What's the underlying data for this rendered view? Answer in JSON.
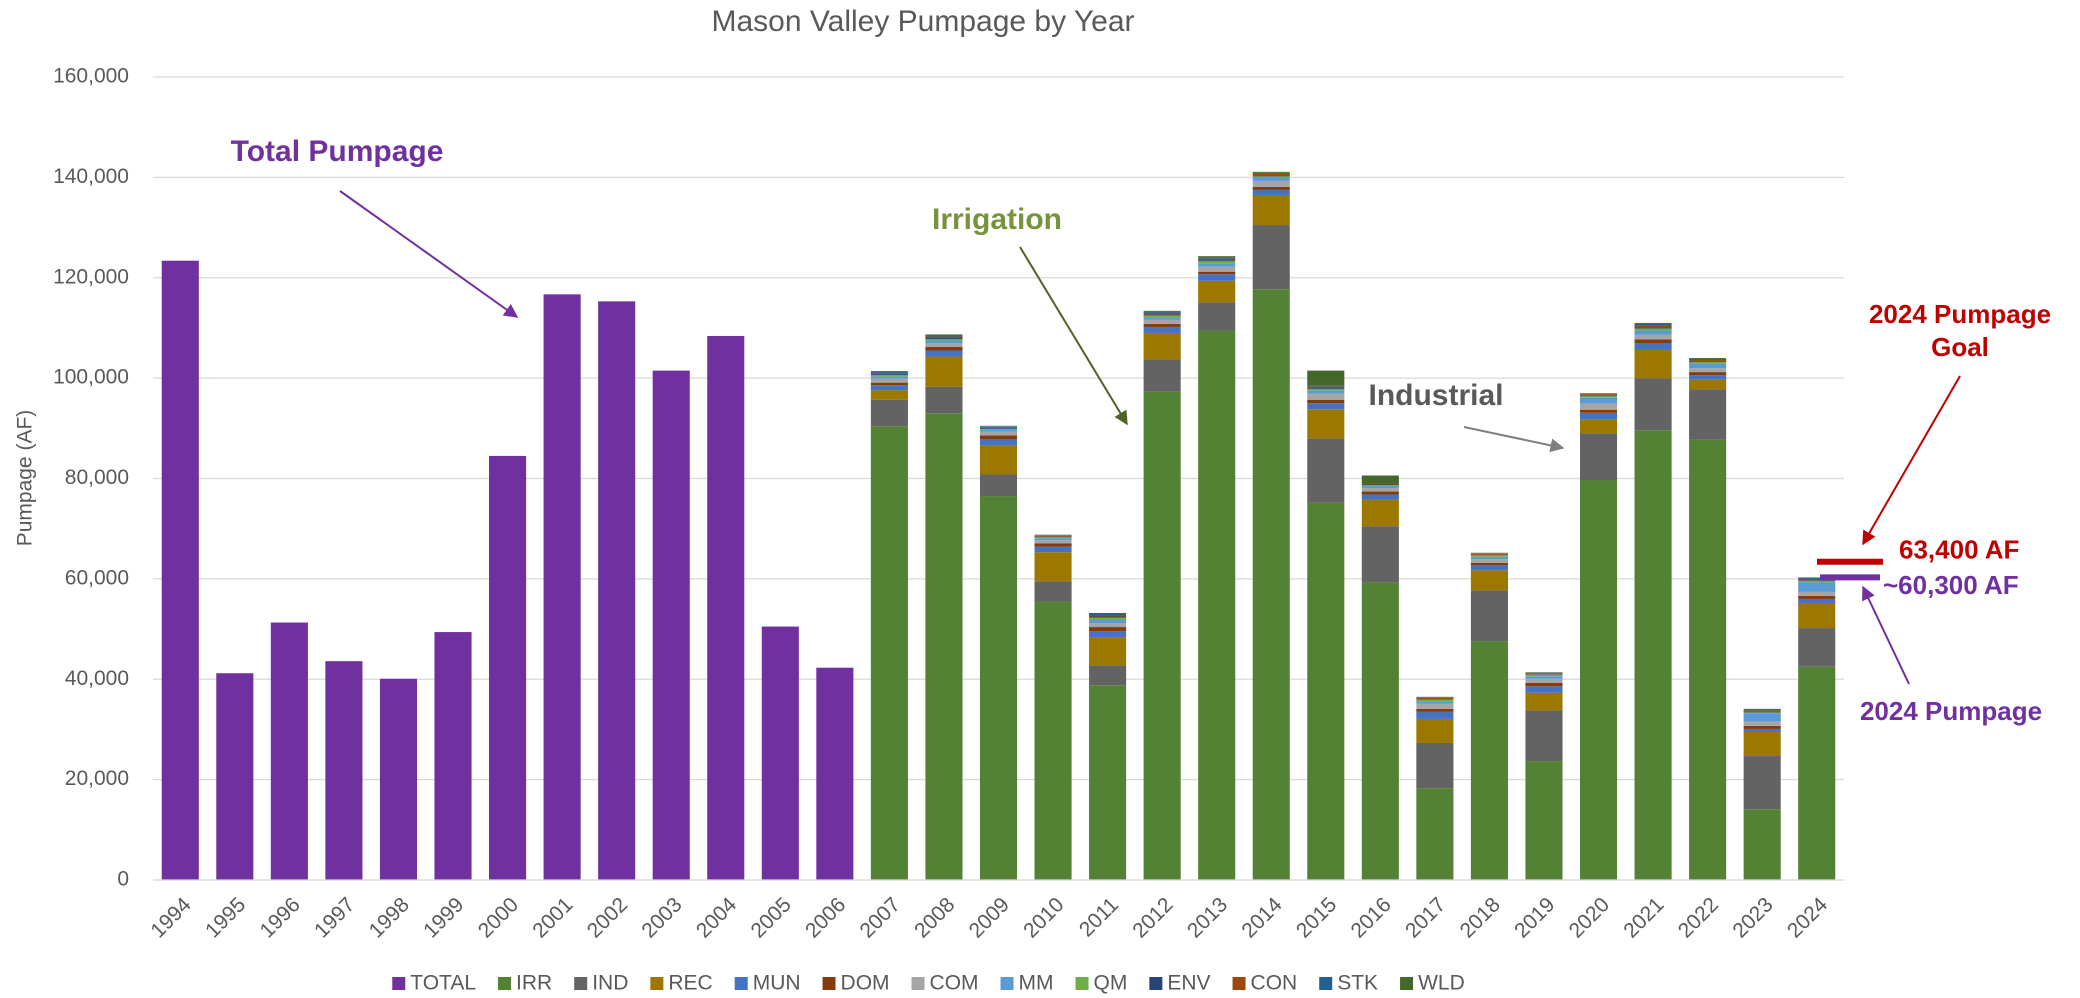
{
  "chart_data": {
    "type": "stacked_bar",
    "title": "Mason Valley Pumpage by Year",
    "y_label": "Pumpage (AF)",
    "categories": [
      "1994",
      "1995",
      "1996",
      "1997",
      "1998",
      "1999",
      "2000",
      "2001",
      "2002",
      "2003",
      "2004",
      "2005",
      "2006",
      "2007",
      "2008",
      "2009",
      "2010",
      "2011",
      "2012",
      "2013",
      "2014",
      "2015",
      "2016",
      "2017",
      "2018",
      "2019",
      "2020",
      "2021",
      "2022",
      "2023",
      "2024"
    ],
    "series": [
      {
        "name": "TOTAL",
        "color": "#7030a0",
        "values": [
          123400,
          41200,
          51300,
          43600,
          40100,
          49400,
          84500,
          116700,
          115300,
          101500,
          108400,
          50500,
          42300,
          null,
          null,
          null,
          null,
          null,
          null,
          null,
          null,
          null,
          null,
          null,
          null,
          null,
          null,
          null,
          null,
          null,
          null
        ]
      },
      {
        "name": "IRR",
        "color": "#548235",
        "values": [
          null,
          null,
          null,
          null,
          null,
          null,
          null,
          null,
          null,
          null,
          null,
          null,
          null,
          90400,
          93000,
          76500,
          55500,
          38800,
          97300,
          109500,
          117700,
          75200,
          59300,
          18300,
          47600,
          23700,
          79700,
          89600,
          87700,
          14100,
          42500
        ]
      },
      {
        "name": "IND",
        "color": "#636363",
        "values": [
          null,
          null,
          null,
          null,
          null,
          null,
          null,
          null,
          null,
          null,
          null,
          null,
          null,
          5300,
          5300,
          4300,
          4000,
          4000,
          6400,
          5600,
          12800,
          12800,
          11200,
          9000,
          10100,
          10100,
          9300,
          10400,
          10100,
          10600,
          7700
        ]
      },
      {
        "name": "REC",
        "color": "#9c7800",
        "values": [
          null,
          null,
          null,
          null,
          null,
          null,
          null,
          null,
          null,
          null,
          null,
          null,
          null,
          1900,
          6000,
          5800,
          5800,
          5600,
          5300,
          4300,
          5800,
          5800,
          5300,
          4800,
          4000,
          3500,
          2700,
          5600,
          1900,
          4800,
          5000
        ]
      },
      {
        "name": "MUN",
        "color": "#4472c4",
        "values": [
          null,
          null,
          null,
          null,
          null,
          null,
          null,
          null,
          null,
          null,
          null,
          null,
          null,
          1000,
          1200,
          1200,
          1100,
          1200,
          1200,
          1300,
          1200,
          1200,
          1000,
          1400,
          1000,
          1300,
          1400,
          1400,
          900,
          600,
          800
        ]
      },
      {
        "name": "DOM",
        "color": "#843c0c",
        "values": [
          null,
          null,
          null,
          null,
          null,
          null,
          null,
          null,
          null,
          null,
          null,
          null,
          null,
          500,
          700,
          800,
          700,
          800,
          600,
          500,
          600,
          700,
          600,
          600,
          500,
          700,
          600,
          700,
          600,
          600,
          600
        ]
      },
      {
        "name": "COM",
        "color": "#a5a5a5",
        "values": [
          null,
          null,
          null,
          null,
          null,
          null,
          null,
          null,
          null,
          null,
          null,
          null,
          null,
          800,
          800,
          700,
          600,
          800,
          800,
          1000,
          1200,
          1200,
          700,
          1000,
          700,
          800,
          1200,
          1000,
          800,
          900,
          800
        ]
      },
      {
        "name": "MM",
        "color": "#5b9bd5",
        "values": [
          null,
          null,
          null,
          null,
          null,
          null,
          null,
          null,
          null,
          null,
          null,
          null,
          null,
          400,
          500,
          400,
          400,
          600,
          500,
          700,
          600,
          600,
          400,
          500,
          500,
          500,
          1200,
          800,
          1000,
          1500,
          1900
        ]
      },
      {
        "name": "QM",
        "color": "#70ad47",
        "values": [
          null,
          null,
          null,
          null,
          null,
          null,
          null,
          null,
          null,
          null,
          null,
          null,
          null,
          300,
          300,
          200,
          200,
          500,
          400,
          400,
          300,
          300,
          200,
          300,
          300,
          300,
          300,
          400,
          200,
          300,
          300
        ]
      },
      {
        "name": "ENV",
        "color": "#264478",
        "values": [
          null,
          null,
          null,
          null,
          null,
          null,
          null,
          null,
          null,
          null,
          null,
          null,
          null,
          200,
          200,
          200,
          100,
          200,
          200,
          200,
          200,
          200,
          100,
          100,
          100,
          100,
          100,
          200,
          100,
          100,
          100
        ]
      },
      {
        "name": "CON",
        "color": "#9e480e",
        "values": [
          null,
          null,
          null,
          null,
          null,
          null,
          null,
          null,
          null,
          null,
          null,
          null,
          null,
          200,
          300,
          200,
          200,
          300,
          300,
          300,
          300,
          300,
          200,
          300,
          200,
          200,
          300,
          400,
          300,
          300,
          300
        ]
      },
      {
        "name": "STK",
        "color": "#255e91",
        "values": [
          null,
          null,
          null,
          null,
          null,
          null,
          null,
          null,
          null,
          null,
          null,
          null,
          null,
          200,
          200,
          100,
          100,
          200,
          200,
          200,
          200,
          200,
          100,
          100,
          100,
          100,
          100,
          300,
          200,
          200,
          200
        ]
      },
      {
        "name": "WLD",
        "color": "#43682b",
        "values": [
          null,
          null,
          null,
          null,
          null,
          null,
          null,
          null,
          null,
          null,
          null,
          null,
          null,
          200,
          200,
          100,
          100,
          200,
          200,
          300,
          200,
          3000,
          1500,
          100,
          100,
          100,
          100,
          200,
          200,
          100,
          100
        ]
      }
    ],
    "ylim": [
      0,
      160000
    ],
    "yticks": [
      0,
      {
        "value": 20000,
        "label": "20,000"
      },
      {
        "value": 40000,
        "label": "40,000"
      },
      {
        "value": 60000,
        "label": "60,000"
      },
      {
        "value": 80000,
        "label": "80,000"
      },
      {
        "value": 100000,
        "label": "100,000"
      },
      {
        "value": 120000,
        "label": "120,000"
      },
      {
        "value": 140000,
        "label": "140,000"
      },
      {
        "value": 160000,
        "label": "160,000"
      }
    ],
    "grid": true,
    "legend": "bottom",
    "reference_lines": [
      {
        "value": 63400,
        "label": "63,400 AF",
        "color": "#c00000"
      },
      {
        "value": 60300,
        "label": "~60,300 AF",
        "color": "#7030a0"
      }
    ],
    "annotations": [
      {
        "text": "Total Pumpage",
        "color": "#7030a0"
      },
      {
        "text": "Irrigation",
        "color": "#77933c"
      },
      {
        "text": "Industrial",
        "color": "#595959"
      },
      {
        "text": [
          "2024 Pumpage",
          "Goal"
        ],
        "color": "#c00000"
      },
      {
        "text": "2024 Pumpage",
        "color": "#7030a0"
      }
    ]
  }
}
